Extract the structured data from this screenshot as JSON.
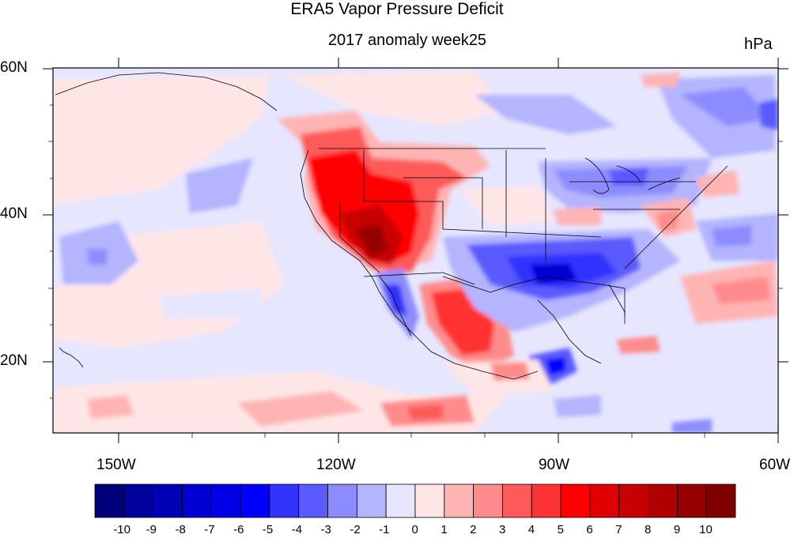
{
  "title": "ERA5 Vapor Pressure Deficit",
  "subtitle": "2017 anomaly week25",
  "units": "hPa",
  "lat_labels": [
    "60N",
    "40N",
    "20N"
  ],
  "lon_labels": [
    "150W",
    "120W",
    "90W",
    "60W"
  ],
  "colorbar": {
    "colors": [
      "#00007d",
      "#00009c",
      "#0000b4",
      "#0000d2",
      "#0000e6",
      "#0000ff",
      "#3333ff",
      "#5a5aff",
      "#8c8cff",
      "#b4b4ff",
      "#e6e6ff",
      "#ffe6e6",
      "#ffb4b4",
      "#ff8c8c",
      "#ff5a5a",
      "#ff3333",
      "#ff0000",
      "#e00000",
      "#c80000",
      "#b00000",
      "#960000",
      "#800000"
    ],
    "labels": [
      "-10",
      "-9",
      "-8",
      "-7",
      "-6",
      "-5",
      "-4",
      "-3",
      "-2",
      "-1",
      "0",
      "1",
      "2",
      "3",
      "4",
      "5",
      "6",
      "7",
      "8",
      "9",
      "10"
    ]
  }
}
